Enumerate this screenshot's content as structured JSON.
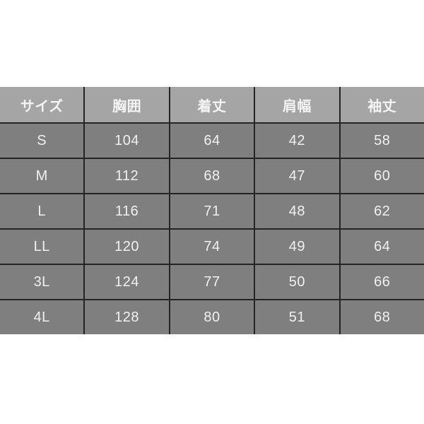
{
  "chart_data": {
    "type": "table",
    "title": "",
    "columns": [
      "サイズ",
      "胸囲",
      "着丈",
      "肩幅",
      "袖丈"
    ],
    "rows": [
      [
        "S",
        104,
        64,
        42,
        58
      ],
      [
        "M",
        112,
        68,
        47,
        60
      ],
      [
        "L",
        116,
        71,
        48,
        62
      ],
      [
        "LL",
        120,
        74,
        49,
        64
      ],
      [
        "3L",
        124,
        77,
        50,
        66
      ],
      [
        "4L",
        128,
        80,
        51,
        68
      ]
    ]
  },
  "colors": {
    "page_bg": "#ffffff",
    "header_bg": "#a5a5a5",
    "row_bg": "#7f7f7f",
    "grid_line": "#242424",
    "text": "#f0f0f0"
  }
}
